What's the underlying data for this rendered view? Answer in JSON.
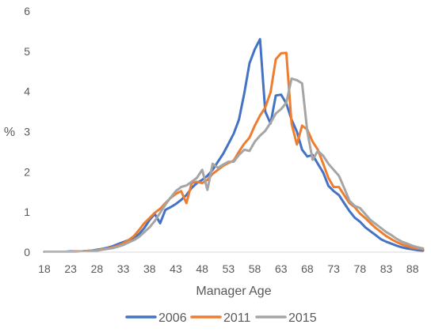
{
  "chart_data": {
    "type": "line",
    "title": "",
    "xlabel": "Manager Age",
    "ylabel": "%",
    "xlim": [
      18,
      90
    ],
    "ylim": [
      0,
      6
    ],
    "x_ticks": [
      18,
      23,
      28,
      33,
      38,
      43,
      48,
      53,
      58,
      63,
      68,
      73,
      78,
      83,
      88
    ],
    "y_ticks": [
      0,
      1,
      2,
      3,
      4,
      5,
      6
    ],
    "grid": false,
    "legend_position": "bottom",
    "series": [
      {
        "name": "2006",
        "color": "#4472C4",
        "x": [
          18,
          19,
          20,
          21,
          22,
          23,
          24,
          25,
          26,
          27,
          28,
          29,
          30,
          31,
          32,
          33,
          34,
          35,
          36,
          37,
          38,
          39,
          40,
          41,
          42,
          43,
          44,
          45,
          46,
          47,
          48,
          49,
          50,
          51,
          52,
          53,
          54,
          55,
          56,
          57,
          58,
          59,
          60,
          61,
          62,
          63,
          64,
          65,
          66,
          67,
          68,
          69,
          70,
          71,
          72,
          73,
          74,
          75,
          76,
          77,
          78,
          79,
          80,
          81,
          82,
          83,
          84,
          85,
          86,
          87,
          88,
          89,
          90
        ],
        "y": [
          0.01,
          0.01,
          0.01,
          0.01,
          0.01,
          0.02,
          0.02,
          0.02,
          0.03,
          0.04,
          0.06,
          0.08,
          0.11,
          0.15,
          0.2,
          0.25,
          0.3,
          0.36,
          0.45,
          0.6,
          0.8,
          0.95,
          0.72,
          1.05,
          1.12,
          1.2,
          1.3,
          1.42,
          1.6,
          1.72,
          1.8,
          1.9,
          2.05,
          2.25,
          2.45,
          2.7,
          2.95,
          3.3,
          3.95,
          4.7,
          5.05,
          5.3,
          3.5,
          3.2,
          3.9,
          3.92,
          3.7,
          3.3,
          3.0,
          2.55,
          2.38,
          2.42,
          2.2,
          1.98,
          1.65,
          1.52,
          1.42,
          1.22,
          1.02,
          0.86,
          0.76,
          0.62,
          0.52,
          0.42,
          0.32,
          0.26,
          0.21,
          0.16,
          0.12,
          0.09,
          0.07,
          0.05,
          0.04
        ]
      },
      {
        "name": "2011",
        "color": "#ED7D31",
        "x": [
          18,
          19,
          20,
          21,
          22,
          23,
          24,
          25,
          26,
          27,
          28,
          29,
          30,
          31,
          32,
          33,
          34,
          35,
          36,
          37,
          38,
          39,
          40,
          41,
          42,
          43,
          44,
          45,
          46,
          47,
          48,
          49,
          50,
          51,
          52,
          53,
          54,
          55,
          56,
          57,
          58,
          59,
          60,
          61,
          62,
          63,
          64,
          65,
          66,
          67,
          68,
          69,
          70,
          71,
          72,
          73,
          74,
          75,
          76,
          77,
          78,
          79,
          80,
          81,
          82,
          83,
          84,
          85,
          86,
          87,
          88,
          89,
          90
        ],
        "y": [
          0.01,
          0.01,
          0.01,
          0.01,
          0.01,
          0.01,
          0.02,
          0.02,
          0.03,
          0.04,
          0.05,
          0.07,
          0.09,
          0.12,
          0.16,
          0.22,
          0.3,
          0.4,
          0.55,
          0.72,
          0.85,
          0.98,
          1.08,
          1.22,
          1.35,
          1.45,
          1.52,
          1.22,
          1.72,
          1.75,
          1.72,
          1.8,
          1.95,
          2.05,
          2.15,
          2.22,
          2.28,
          2.5,
          2.7,
          2.85,
          3.15,
          3.4,
          3.6,
          3.98,
          4.8,
          4.95,
          4.96,
          3.2,
          2.68,
          3.15,
          3.05,
          2.75,
          2.55,
          2.2,
          1.85,
          1.62,
          1.62,
          1.42,
          1.22,
          1.12,
          0.96,
          0.85,
          0.72,
          0.6,
          0.5,
          0.4,
          0.32,
          0.25,
          0.19,
          0.15,
          0.11,
          0.09,
          0.07
        ]
      },
      {
        "name": "2015",
        "color": "#A5A5A5",
        "x": [
          18,
          19,
          20,
          21,
          22,
          23,
          24,
          25,
          26,
          27,
          28,
          29,
          30,
          31,
          32,
          33,
          34,
          35,
          36,
          37,
          38,
          39,
          40,
          41,
          42,
          43,
          44,
          45,
          46,
          47,
          48,
          49,
          50,
          51,
          52,
          53,
          54,
          55,
          56,
          57,
          58,
          59,
          60,
          61,
          62,
          63,
          64,
          65,
          66,
          67,
          68,
          69,
          70,
          71,
          72,
          73,
          74,
          75,
          76,
          77,
          78,
          79,
          80,
          81,
          82,
          83,
          84,
          85,
          86,
          87,
          88,
          89,
          90
        ],
        "y": [
          0.01,
          0.01,
          0.01,
          0.01,
          0.01,
          0.01,
          0.01,
          0.02,
          0.02,
          0.03,
          0.04,
          0.06,
          0.08,
          0.1,
          0.14,
          0.18,
          0.24,
          0.3,
          0.38,
          0.5,
          0.62,
          0.78,
          0.98,
          1.18,
          1.36,
          1.52,
          1.62,
          1.66,
          1.75,
          1.85,
          2.05,
          1.55,
          2.2,
          2.1,
          2.18,
          2.25,
          2.25,
          2.42,
          2.55,
          2.52,
          2.75,
          2.9,
          3.02,
          3.22,
          3.45,
          3.56,
          3.72,
          4.32,
          4.28,
          4.2,
          3.0,
          2.3,
          2.52,
          2.4,
          2.2,
          2.05,
          1.9,
          1.6,
          1.28,
          1.15,
          1.1,
          0.95,
          0.8,
          0.7,
          0.6,
          0.5,
          0.42,
          0.33,
          0.26,
          0.21,
          0.16,
          0.12,
          0.09
        ]
      }
    ]
  }
}
